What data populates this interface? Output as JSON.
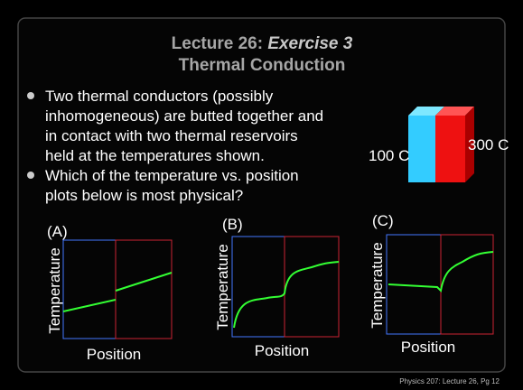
{
  "title": {
    "prefix": "Lecture 26: ",
    "emphasis": "Exercise 3",
    "line2": "Thermal Conduction"
  },
  "bullets": [
    [
      "Two thermal conductors (possibly",
      "inhomogeneous) are butted together and",
      "in contact with two thermal reservoirs",
      "held at the temperatures shown."
    ],
    [
      "Which of the temperature vs. position",
      "plots below is most physical?"
    ]
  ],
  "reservoirs": {
    "left": "100 C",
    "right": "300 C"
  },
  "plots": [
    {
      "label": "(A)",
      "y_label": "Temperature",
      "x_label": "Position"
    },
    {
      "label": "(B)",
      "y_label": "Temperature",
      "x_label": "Position"
    },
    {
      "label": "(C)",
      "y_label": "Temperature",
      "x_label": "Position"
    }
  ],
  "footer": "Physics 207: Lecture 26, Pg 12"
}
